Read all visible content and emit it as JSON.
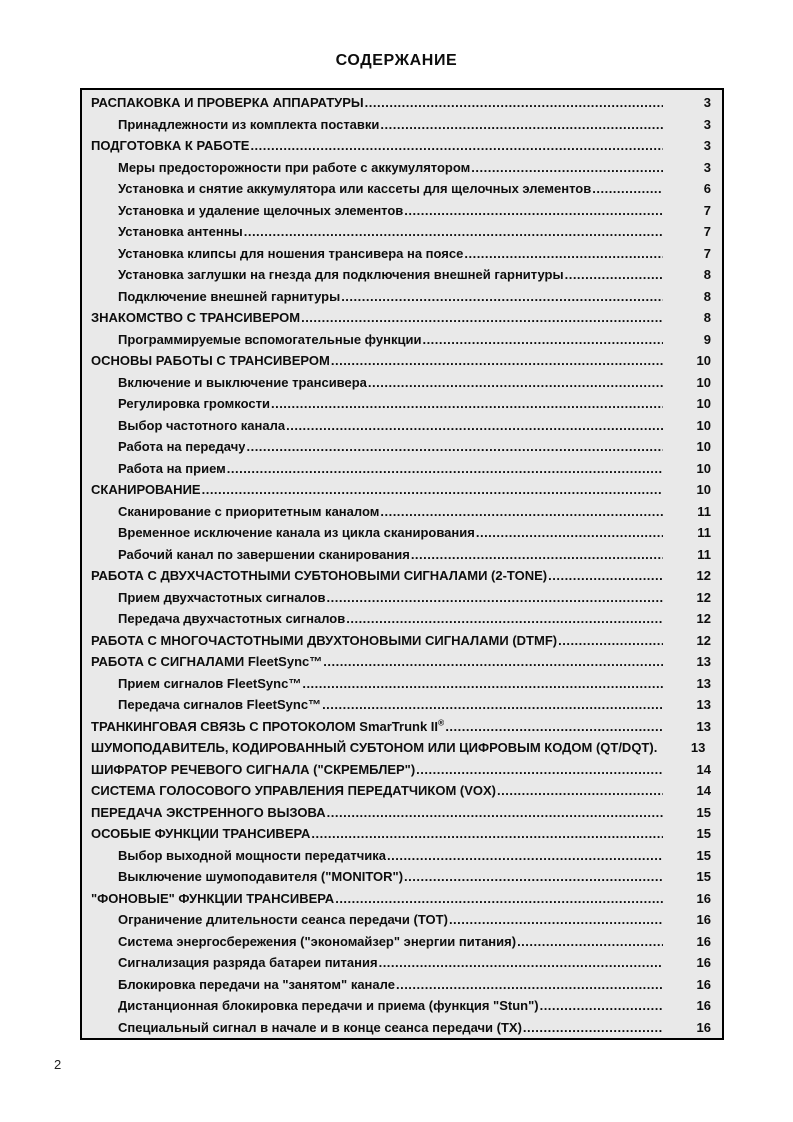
{
  "page": {
    "title": "СОДЕРЖАНИЕ",
    "footer_page_number": "2"
  },
  "colors": {
    "page_background": "#ffffff",
    "box_background": "#e9e9e9",
    "box_border": "#000000",
    "text": "#0d0d0d"
  },
  "toc": {
    "leader_char": ".",
    "entries": [
      {
        "label": "РАСПАКОВКА И ПРОВЕРКА АППАРАТУРЫ",
        "page": "3",
        "level": 0
      },
      {
        "label": "Принадлежности из комплекта поставки",
        "page": "3",
        "level": 1
      },
      {
        "label": "ПОДГОТОВКА К РАБОТЕ",
        "page": "3",
        "level": 0
      },
      {
        "label": "Меры предосторожности при работе с аккумулятором",
        "page": "3",
        "level": 1
      },
      {
        "label": "Установка и снятие аккумулятора или кассеты для щелочных элементов",
        "page": "6",
        "level": 1
      },
      {
        "label": "Установка и удаление щелочных элементов",
        "page": "7",
        "level": 1
      },
      {
        "label": "Установка антенны",
        "page": "7",
        "level": 1
      },
      {
        "label": "Установка клипсы для ношения трансивера на поясе",
        "page": "7",
        "level": 1
      },
      {
        "label": "Установка заглушки на гнезда для подключения внешней гарнитуры",
        "page": "8",
        "level": 1
      },
      {
        "label": "Подключение внешней гарнитуры",
        "page": "8",
        "level": 1
      },
      {
        "label": "ЗНАКОМСТВО С ТРАНСИВЕРОМ",
        "page": "8",
        "level": 0
      },
      {
        "label": "Программируемые вспомогательные функции",
        "page": "9",
        "level": 1
      },
      {
        "label": "ОСНОВЫ РАБОТЫ С ТРАНСИВЕРОМ",
        "page": "10",
        "level": 0
      },
      {
        "label": "Включение и выключение трансивера",
        "page": "10",
        "level": 1
      },
      {
        "label": "Регулировка громкости",
        "page": "10",
        "level": 1
      },
      {
        "label": "Выбор частотного канала",
        "page": "10",
        "level": 1
      },
      {
        "label": "Работа на передачу",
        "page": "10",
        "level": 1
      },
      {
        "label": "Работа на прием",
        "page": "10",
        "level": 1
      },
      {
        "label": "СКАНИРОВАНИЕ",
        "page": "10",
        "level": 0
      },
      {
        "label": "Сканирование с приоритетным каналом",
        "page": "11",
        "level": 1
      },
      {
        "label": "Временное исключение канала из цикла сканирования",
        "page": "11",
        "level": 1
      },
      {
        "label": "Рабочий канал по завершении сканирования",
        "page": "11",
        "level": 1
      },
      {
        "label": "РАБОТА С ДВУХЧАСТОТНЫМИ СУБТОНОВЫМИ СИГНАЛАМИ (2-TONE)",
        "page": "12",
        "level": 0
      },
      {
        "label": "Прием двухчастотных сигналов",
        "page": "12",
        "level": 1
      },
      {
        "label": "Передача двухчастотных сигналов",
        "page": "12",
        "level": 1
      },
      {
        "label": "РАБОТА С МНОГОЧАСТОТНЫМИ ДВУХТОНОВЫМИ СИГНАЛАМИ (DTMF)",
        "page": "12",
        "level": 0
      },
      {
        "label": "РАБОТА С СИГНАЛАМИ FleetSync™",
        "page": "13",
        "level": 0
      },
      {
        "label": "Прием сигналов FleetSync™",
        "page": "13",
        "level": 1
      },
      {
        "label": "Передача сигналов FleetSync™",
        "page": "13",
        "level": 1
      },
      {
        "label": "ТРАНКИНГОВАЯ СВЯЗЬ С ПРОТОКОЛОМ SmarTrunk II",
        "sup": "®",
        "page": "13",
        "level": 0
      },
      {
        "label": "ШУМОПОДАВИТЕЛЬ, КОДИРОВАННЫЙ СУБТОНОМ ИЛИ ЦИФРОВЫМ КОДОМ (QT/DQT).",
        "page": "13",
        "level": 0,
        "leader": false
      },
      {
        "label": "ШИФРАТОР РЕЧЕВОГО СИГНАЛА (\"СКРЕМБЛЕР\")",
        "page": "14",
        "level": 0
      },
      {
        "label": "СИСТЕМА ГОЛОСОВОГО УПРАВЛЕНИЯ ПЕРЕДАТЧИКОМ (VOX)",
        "page": "14",
        "level": 0
      },
      {
        "label": "ПЕРЕДАЧА ЭКСТРЕННОГО ВЫЗОВА",
        "page": "15",
        "level": 0
      },
      {
        "label": "ОСОБЫЕ ФУНКЦИИ ТРАНСИВЕРА",
        "page": "15",
        "level": 0
      },
      {
        "label": "Выбор выходной мощности передатчика",
        "page": "15",
        "level": 1
      },
      {
        "label": "Выключение шумоподавителя (\"MONITOR\")",
        "page": "15",
        "level": 1
      },
      {
        "label": "\"ФОНОВЫЕ\" ФУНКЦИИ ТРАНСИВЕРА",
        "page": "16",
        "level": 0
      },
      {
        "label": "Ограничение длительности сеанса передачи (TOT)",
        "page": "16",
        "level": 1
      },
      {
        "label": "Система энергосбережения (\"экономайзер\" энергии питания)",
        "page": "16",
        "level": 1
      },
      {
        "label": "Сигнализация разряда батареи питания",
        "page": "16",
        "level": 1
      },
      {
        "label": "Блокировка передачи на \"занятом\" канале",
        "page": "16",
        "level": 1
      },
      {
        "label": "Дистанционная блокировка передачи и приема (функция \"Stun\")",
        "page": "16",
        "level": 1
      },
      {
        "label": "Специальный сигнал в начале и в конце сеанса передачи (TX)",
        "page": "16",
        "level": 1
      }
    ]
  }
}
